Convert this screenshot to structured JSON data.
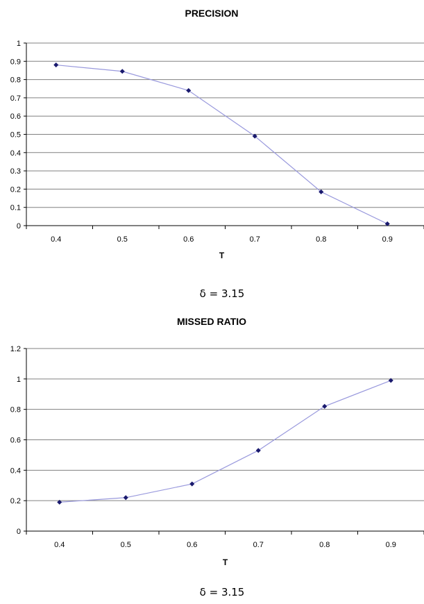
{
  "chart_data": [
    {
      "type": "line",
      "title": "PRECISION",
      "xlabel": "T",
      "ylabel": "",
      "x": [
        0.4,
        0.5,
        0.6,
        0.7,
        0.8,
        0.9
      ],
      "x_tick_labels": [
        "0.4",
        "0.5",
        "0.6",
        "0.7",
        "0.8",
        "0.9"
      ],
      "y_tick_labels": [
        "0",
        "0.1",
        "0.2",
        "0.3",
        "0.4",
        "0.5",
        "0.6",
        "0.7",
        "0.8",
        "0.9",
        "1"
      ],
      "ylim": [
        0,
        1
      ],
      "series": [
        {
          "values": [
            0.88,
            0.845,
            0.74,
            0.49,
            0.185,
            0.01
          ]
        }
      ],
      "annotation": "δ = 3.15",
      "grid": true,
      "colors": {
        "line": "#9999dd",
        "marker": "#1a1a6e",
        "grid": "#808080"
      }
    },
    {
      "type": "line",
      "title": "MISSED RATIO",
      "xlabel": "T",
      "ylabel": "",
      "x": [
        0.4,
        0.5,
        0.6,
        0.7,
        0.8,
        0.9
      ],
      "x_tick_labels": [
        "0.4",
        "0.5",
        "0.6",
        "0.7",
        "0.8",
        "0.9"
      ],
      "y_tick_labels": [
        "0",
        "0.2",
        "0.4",
        "0.6",
        "0.8",
        "1",
        "1.2"
      ],
      "ylim": [
        0,
        1.2
      ],
      "series": [
        {
          "values": [
            0.19,
            0.22,
            0.31,
            0.53,
            0.82,
            0.99
          ]
        }
      ],
      "annotation": "δ = 3.15",
      "grid": true,
      "colors": {
        "line": "#9999dd",
        "marker": "#1a1a6e",
        "grid": "#808080"
      }
    }
  ]
}
